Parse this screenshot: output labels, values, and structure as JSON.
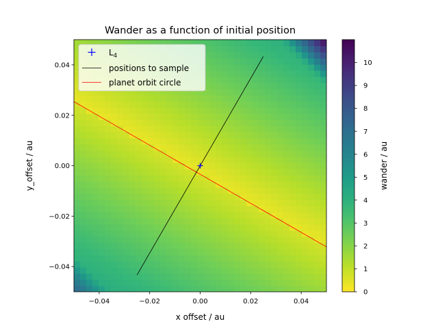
{
  "chart_data": {
    "type": "heatmap",
    "title": "Wander as a function of initial position",
    "xlabel": "x offset / au",
    "ylabel": "y_offset / au",
    "xlim": [
      -0.05,
      0.05
    ],
    "ylim": [
      -0.05,
      0.05
    ],
    "x_ticks": [
      -0.04,
      -0.02,
      0.0,
      0.02,
      0.04
    ],
    "x_tick_labels": [
      "−0.04",
      "−0.02",
      "0.00",
      "0.02",
      "0.04"
    ],
    "y_ticks": [
      -0.04,
      -0.02,
      0.0,
      0.02,
      0.04
    ],
    "y_tick_labels": [
      "−0.04",
      "−0.02",
      "0.00",
      "0.02",
      "0.04"
    ],
    "colorbar": {
      "label": "wander / au",
      "range": [
        0,
        11
      ],
      "ticks": [
        0,
        1,
        2,
        3,
        4,
        5,
        6,
        7,
        8,
        9,
        10
      ],
      "tick_labels": [
        "0",
        "1",
        "2",
        "3",
        "4",
        "5",
        "6",
        "7",
        "8",
        "9",
        "10"
      ],
      "colormap": "viridis_r"
    },
    "legend": {
      "position": "upper-left",
      "entries": [
        {
          "label": "L",
          "subscript": "4",
          "marker": "+",
          "color": "#0000ff"
        },
        {
          "label": "positions to sample",
          "color": "#000000"
        },
        {
          "label": "planet orbit circle",
          "color": "#ff0000"
        }
      ]
    },
    "l4_point": {
      "x": 0.0,
      "y": 0.0
    },
    "sample_line": {
      "x": [
        -0.025,
        0.025
      ],
      "y": [
        -0.0433,
        0.0433
      ]
    },
    "orbit_circle_line": {
      "x": [
        -0.05,
        0.05
      ],
      "y": [
        0.0254,
        -0.0322
      ]
    },
    "heatmap_field": {
      "ridge_slope": -0.576,
      "ridge_offset": -0.0034,
      "ridge_value": 0.3,
      "cross_gradient": 60,
      "corner_values": [
        {
          "x": 0.05,
          "y": 0.05,
          "value": 11
        },
        {
          "x": -0.05,
          "y": -0.05,
          "value": 7.5
        }
      ]
    }
  }
}
